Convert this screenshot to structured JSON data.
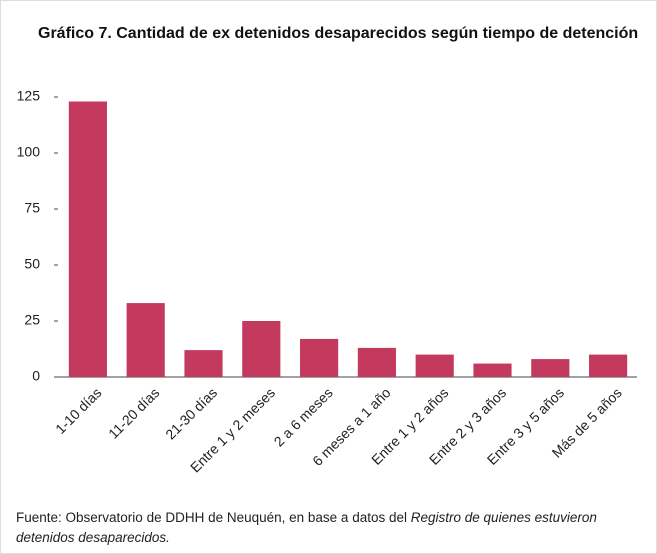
{
  "chart_data": {
    "type": "bar",
    "title": "Gráfico 7. Cantidad de ex detenidos desaparecidos según tiempo de detención",
    "categories": [
      "1-10 días",
      "11-20 días",
      "21-30 días",
      "Entre 1 y 2 meses",
      "2 a 6 meses",
      "6 meses a 1 año",
      "Entre 1 y 2 años",
      "Entre 2 y 3 años",
      "Entre 3 y 5 años",
      "Más de 5 años"
    ],
    "values": [
      123,
      33,
      12,
      25,
      17,
      13,
      10,
      6,
      8,
      10
    ],
    "color": "#c43a5e",
    "ylim": [
      0,
      125
    ],
    "yticks": [
      0,
      25,
      50,
      75,
      100,
      125
    ],
    "grid": false
  },
  "source": {
    "text": "Fuente: Observatorio de DDHH de Neuquén, en base a datos del",
    "italic": "Registro de quienes estuvieron detenidos desaparecidos."
  }
}
